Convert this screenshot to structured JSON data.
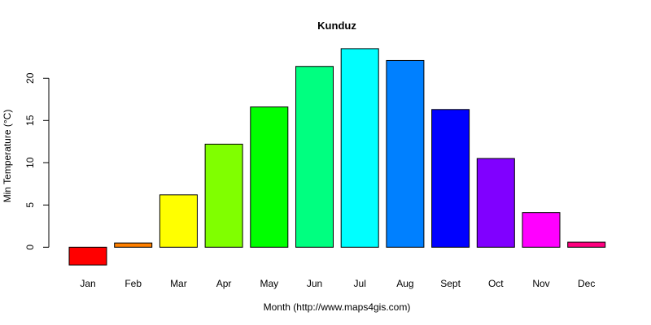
{
  "chart_data": {
    "type": "bar",
    "title": "Kunduz",
    "xlabel": "Month (http://www.maps4gis.com)",
    "ylabel": "Min Temperature (°C)",
    "categories": [
      "Jan",
      "Feb",
      "Mar",
      "Apr",
      "May",
      "Jun",
      "Jul",
      "Aug",
      "Sept",
      "Oct",
      "Nov",
      "Dec"
    ],
    "values": [
      -2.1,
      0.5,
      6.2,
      12.2,
      16.6,
      21.4,
      23.5,
      22.1,
      16.3,
      10.5,
      4.1,
      0.6
    ],
    "colors": [
      "#FF0000",
      "#FF8000",
      "#FFFF00",
      "#80FF00",
      "#00FF00",
      "#00FF80",
      "#00FFFF",
      "#0080FF",
      "#0000FF",
      "#8000FF",
      "#FF00FF",
      "#FF0080"
    ],
    "yticks": [
      0,
      5,
      10,
      15,
      20
    ],
    "ylim": [
      -2.1,
      23.5
    ],
    "grid": false,
    "legend": "none"
  }
}
